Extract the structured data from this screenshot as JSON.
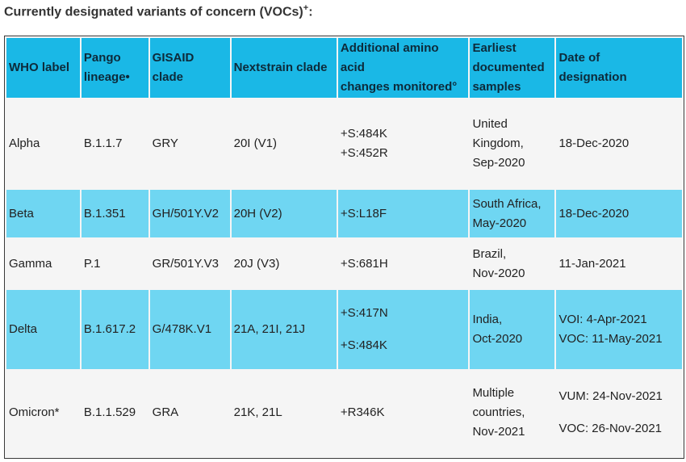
{
  "heading": {
    "text": "Currently designated variants of concern (VOCs)",
    "superscript": "+",
    "suffix": ":"
  },
  "columns": [
    [
      "WHO label"
    ],
    [
      "Pango",
      "lineage•"
    ],
    [
      "GISAID",
      "clade"
    ],
    [
      "Nextstrain clade"
    ],
    [
      "Additional amino",
      "acid",
      "changes monitored°"
    ],
    [
      "Earliest",
      "documented",
      "samples"
    ],
    [
      "Date of",
      "designation"
    ]
  ],
  "rows": [
    {
      "who": "Alpha",
      "pango": "B.1.1.7",
      "gisaid": "GRY",
      "nextstrain": "20I (V1)",
      "amino": [
        "+S:484K",
        "+S:452R"
      ],
      "earliest": [
        "United",
        "Kingdom,",
        "Sep-2020"
      ],
      "date": [
        "18-Dec-2020"
      ]
    },
    {
      "who": "Beta",
      "pango": "B.1.351",
      "gisaid": "GH/501Y.V2",
      "nextstrain": "20H (V2)",
      "amino": [
        "+S:L18F"
      ],
      "earliest": [
        "South Africa,",
        "May-2020"
      ],
      "date": [
        "18-Dec-2020"
      ]
    },
    {
      "who": "Gamma",
      "pango": "P.1",
      "gisaid": "GR/501Y.V3",
      "nextstrain": "20J (V3)",
      "amino": [
        "+S:681H"
      ],
      "earliest": [
        "Brazil,",
        "Nov-2020"
      ],
      "date": [
        "11-Jan-2021"
      ]
    },
    {
      "who": "Delta",
      "pango": "B.1.617.2",
      "gisaid": "G/478K.V1",
      "nextstrain": "21A, 21I, 21J",
      "amino": [
        "+S:417N",
        "+S:484K"
      ],
      "earliest": [
        "India,",
        "Oct-2020"
      ],
      "date": [
        "VOI: 4-Apr-2021",
        "VOC: 11-May-2021"
      ]
    },
    {
      "who": "Omicron*",
      "pango": "B.1.1.529",
      "gisaid": "GRA",
      "nextstrain": "21K, 21L",
      "amino": [
        "+R346K"
      ],
      "earliest": [
        "Multiple",
        "countries,",
        "Nov-2021"
      ],
      "date": [
        "VUM: 24-Nov-2021",
        "VOC: 26-Nov-2021"
      ]
    }
  ]
}
